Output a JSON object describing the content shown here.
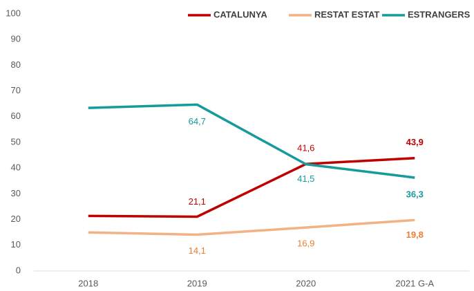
{
  "chart_data": {
    "type": "line",
    "categories": [
      "2018",
      "2019",
      "2020",
      "2021 G-A"
    ],
    "series": [
      {
        "name": "CATALUNYA",
        "color": "#c00000",
        "label_color": "#c00000",
        "values": [
          21.4,
          21.1,
          41.6,
          43.9
        ],
        "value_labels": [
          null,
          "21,1",
          "41,6",
          "43,9"
        ]
      },
      {
        "name": "RESTAT ESTAT",
        "color": "#f4b183",
        "label_color": "#ed7d31",
        "values": [
          15.0,
          14.1,
          16.9,
          19.8
        ],
        "value_labels": [
          null,
          "14,1",
          "16,9",
          "19,8"
        ]
      },
      {
        "name": "ESTRANGERS",
        "color": "#169a9c",
        "label_color": "#169a9c",
        "values": [
          63.4,
          64.7,
          41.5,
          36.3
        ],
        "value_labels": [
          null,
          "64,7",
          "41,5",
          "36,3"
        ]
      }
    ],
    "ylim": [
      0,
      100
    ],
    "yticks": [
      0,
      10,
      20,
      30,
      40,
      50,
      60,
      70,
      80,
      90,
      100
    ],
    "grid": false,
    "legend": "top-right"
  }
}
